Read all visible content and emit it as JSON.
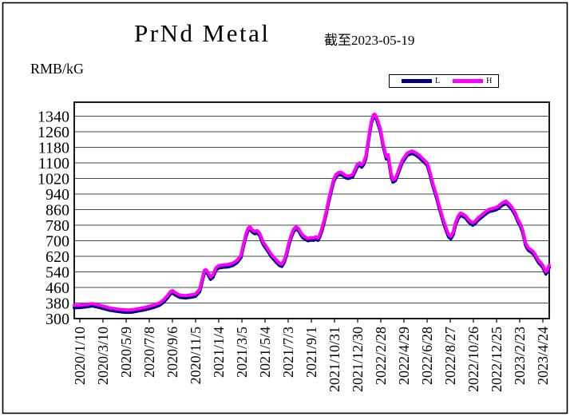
{
  "chart_data": {
    "type": "line",
    "title": "PrNd Metal",
    "subtitle": "截至2023-05-19",
    "unit_label": "RMB/kG",
    "ylim": [
      300,
      1340
    ],
    "y_ticks": [
      300,
      380,
      460,
      540,
      620,
      700,
      780,
      860,
      940,
      1020,
      1100,
      1180,
      1260,
      1340
    ],
    "x_tick_labels": [
      "2020/1/10",
      "2020/3/10",
      "2020/5/9",
      "2020/7/8",
      "2020/9/6",
      "2020/11/5",
      "2021/1/4",
      "2021/3/5",
      "2021/5/4",
      "2021/7/3",
      "2021/9/1",
      "2021/10/31",
      "2021/12/30",
      "2022/2/28",
      "2022/4/29",
      "2022/6/28",
      "2022/8/27",
      "2022/10/26",
      "2022/12/25",
      "2023/2/23",
      "2023/4/24"
    ],
    "grid": "horizontal",
    "legend_position": "top-right",
    "series": [
      {
        "name": "L",
        "color": "#000080",
        "value_offset_from_h": -12
      },
      {
        "name": "H",
        "color": "#FF00FF",
        "value_offset_from_h": 0
      }
    ],
    "h_points": [
      [
        0.0,
        368
      ],
      [
        0.012,
        369
      ],
      [
        0.024,
        372
      ],
      [
        0.038,
        377
      ],
      [
        0.05,
        371
      ],
      [
        0.062,
        363
      ],
      [
        0.074,
        355
      ],
      [
        0.087,
        350
      ],
      [
        0.1,
        346
      ],
      [
        0.113,
        344
      ],
      [
        0.124,
        346
      ],
      [
        0.134,
        351
      ],
      [
        0.146,
        356
      ],
      [
        0.158,
        363
      ],
      [
        0.17,
        372
      ],
      [
        0.18,
        381
      ],
      [
        0.188,
        396
      ],
      [
        0.197,
        420
      ],
      [
        0.202,
        438
      ],
      [
        0.207,
        444
      ],
      [
        0.213,
        433
      ],
      [
        0.222,
        421
      ],
      [
        0.234,
        418
      ],
      [
        0.244,
        421
      ],
      [
        0.255,
        426
      ],
      [
        0.264,
        450
      ],
      [
        0.269,
        500
      ],
      [
        0.274,
        548
      ],
      [
        0.277,
        552
      ],
      [
        0.281,
        540
      ],
      [
        0.287,
        514
      ],
      [
        0.292,
        524
      ],
      [
        0.298,
        560
      ],
      [
        0.304,
        572
      ],
      [
        0.314,
        576
      ],
      [
        0.324,
        578
      ],
      [
        0.334,
        585
      ],
      [
        0.343,
        600
      ],
      [
        0.351,
        625
      ],
      [
        0.356,
        680
      ],
      [
        0.361,
        730
      ],
      [
        0.366,
        765
      ],
      [
        0.37,
        772
      ],
      [
        0.375,
        756
      ],
      [
        0.38,
        748
      ],
      [
        0.385,
        752
      ],
      [
        0.39,
        740
      ],
      [
        0.398,
        692
      ],
      [
        0.407,
        660
      ],
      [
        0.415,
        630
      ],
      [
        0.424,
        605
      ],
      [
        0.432,
        585
      ],
      [
        0.437,
        580
      ],
      [
        0.442,
        600
      ],
      [
        0.447,
        640
      ],
      [
        0.452,
        690
      ],
      [
        0.457,
        730
      ],
      [
        0.462,
        760
      ],
      [
        0.467,
        772
      ],
      [
        0.472,
        764
      ],
      [
        0.477,
        742
      ],
      [
        0.482,
        726
      ],
      [
        0.487,
        718
      ],
      [
        0.492,
        712
      ],
      [
        0.499,
        716
      ],
      [
        0.504,
        714
      ],
      [
        0.508,
        720
      ],
      [
        0.513,
        714
      ],
      [
        0.516,
        726
      ],
      [
        0.521,
        760
      ],
      [
        0.526,
        805
      ],
      [
        0.531,
        855
      ],
      [
        0.536,
        915
      ],
      [
        0.541,
        965
      ],
      [
        0.546,
        1015
      ],
      [
        0.551,
        1040
      ],
      [
        0.556,
        1050
      ],
      [
        0.561,
        1052
      ],
      [
        0.566,
        1045
      ],
      [
        0.571,
        1036
      ],
      [
        0.576,
        1032
      ],
      [
        0.581,
        1035
      ],
      [
        0.586,
        1040
      ],
      [
        0.592,
        1070
      ],
      [
        0.596,
        1092
      ],
      [
        0.601,
        1100
      ],
      [
        0.605,
        1090
      ],
      [
        0.609,
        1102
      ],
      [
        0.614,
        1135
      ],
      [
        0.618,
        1200
      ],
      [
        0.622,
        1265
      ],
      [
        0.626,
        1320
      ],
      [
        0.63,
        1348
      ],
      [
        0.633,
        1350
      ],
      [
        0.636,
        1338
      ],
      [
        0.64,
        1308
      ],
      [
        0.644,
        1278
      ],
      [
        0.647,
        1242
      ],
      [
        0.65,
        1200
      ],
      [
        0.654,
        1162
      ],
      [
        0.657,
        1132
      ],
      [
        0.661,
        1142
      ],
      [
        0.664,
        1092
      ],
      [
        0.667,
        1045
      ],
      [
        0.671,
        1013
      ],
      [
        0.676,
        1020
      ],
      [
        0.681,
        1050
      ],
      [
        0.686,
        1085
      ],
      [
        0.691,
        1115
      ],
      [
        0.696,
        1132
      ],
      [
        0.701,
        1150
      ],
      [
        0.706,
        1156
      ],
      [
        0.711,
        1161
      ],
      [
        0.716,
        1156
      ],
      [
        0.721,
        1149
      ],
      [
        0.726,
        1140
      ],
      [
        0.731,
        1128
      ],
      [
        0.736,
        1117
      ],
      [
        0.743,
        1100
      ],
      [
        0.748,
        1060
      ],
      [
        0.753,
        1012
      ],
      [
        0.758,
        970
      ],
      [
        0.763,
        930
      ],
      [
        0.768,
        882
      ],
      [
        0.773,
        842
      ],
      [
        0.778,
        800
      ],
      [
        0.783,
        764
      ],
      [
        0.788,
        732
      ],
      [
        0.793,
        722
      ],
      [
        0.798,
        745
      ],
      [
        0.803,
        795
      ],
      [
        0.808,
        825
      ],
      [
        0.813,
        842
      ],
      [
        0.818,
        838
      ],
      [
        0.824,
        828
      ],
      [
        0.829,
        812
      ],
      [
        0.834,
        800
      ],
      [
        0.839,
        792
      ],
      [
        0.844,
        800
      ],
      [
        0.849,
        815
      ],
      [
        0.854,
        825
      ],
      [
        0.859,
        835
      ],
      [
        0.864,
        845
      ],
      [
        0.869,
        855
      ],
      [
        0.874,
        862
      ],
      [
        0.879,
        865
      ],
      [
        0.884,
        868
      ],
      [
        0.889,
        872
      ],
      [
        0.894,
        880
      ],
      [
        0.899,
        890
      ],
      [
        0.904,
        898
      ],
      [
        0.909,
        904
      ],
      [
        0.914,
        893
      ],
      [
        0.919,
        880
      ],
      [
        0.924,
        862
      ],
      [
        0.929,
        840
      ],
      [
        0.934,
        810
      ],
      [
        0.939,
        788
      ],
      [
        0.944,
        755
      ],
      [
        0.95,
        690
      ],
      [
        0.953,
        675
      ],
      [
        0.956,
        663
      ],
      [
        0.961,
        655
      ],
      [
        0.966,
        645
      ],
      [
        0.97,
        632
      ],
      [
        0.973,
        618
      ],
      [
        0.978,
        597
      ],
      [
        0.983,
        585
      ],
      [
        0.987,
        572
      ],
      [
        0.99,
        556
      ],
      [
        0.993,
        541
      ],
      [
        0.996,
        552
      ],
      [
        1.0,
        575
      ]
    ]
  },
  "colors": {
    "background": "#FFFFFF",
    "gridline": "#4A4A4A",
    "axis": "#000000",
    "series_l": "#000080",
    "series_h": "#FF00FF"
  }
}
